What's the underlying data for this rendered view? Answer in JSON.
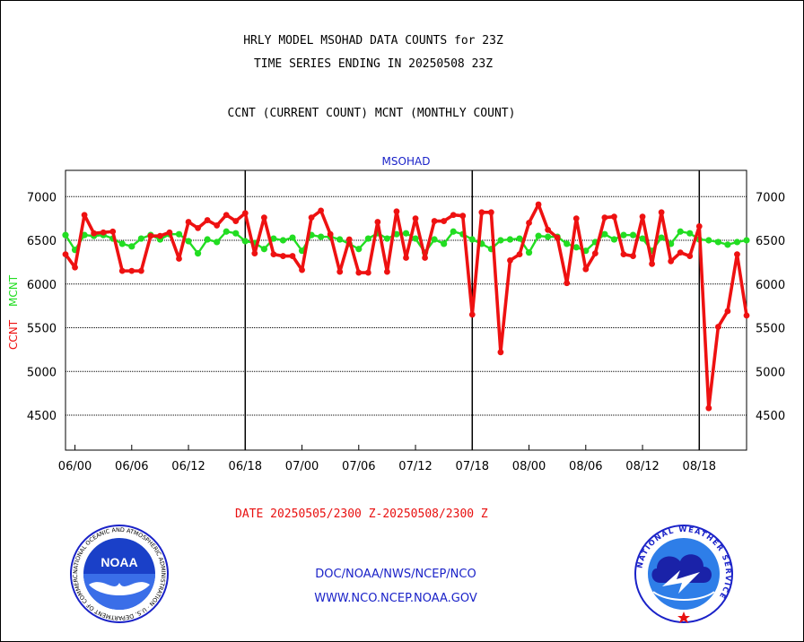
{
  "titles": {
    "line1": "HRLY MODEL MSOHAD DATA COUNTS for 23Z",
    "line2": "TIME SERIES ENDING IN 20250508 23Z",
    "line3": "CCNT (CURRENT COUNT) MCNT (MONTHLY COUNT)"
  },
  "date_range": "DATE 20250505/2300 Z-20250508/2300 Z",
  "credits": {
    "line1": "DOC/NOAA/NWS/NCEP/NCO",
    "line2": "WWW.NCO.NCEP.NOAA.GOV"
  },
  "logos": {
    "left": {
      "icon": "noaa-logo",
      "text": "NOAA",
      "ring": "NATIONAL OCEANIC AND ATMOSPHERIC ADMINISTRATION · U.S. DEPARTMENT OF COMMERCE"
    },
    "right": {
      "icon": "nws-logo",
      "ring": "NATIONAL WEATHER SERVICE"
    }
  },
  "colors": {
    "ccnt": "#ee1111",
    "mcnt": "#22dd22",
    "panel_label": "#1a22c8"
  },
  "chart_data": {
    "type": "line",
    "panel_label": "MSOHAD",
    "ylabel_ccnt": "CCNT",
    "ylabel_mcnt": "MCNT",
    "ylim": [
      4100,
      7300
    ],
    "yticks": [
      4500,
      5000,
      5500,
      6000,
      6500,
      7000
    ],
    "xticks": [
      "06/00",
      "06/06",
      "06/12",
      "06/18",
      "07/00",
      "07/06",
      "07/12",
      "07/18",
      "08/00",
      "08/06",
      "08/12",
      "08/18"
    ],
    "day_boundaries": [
      "06/18",
      "07/18",
      "08/18"
    ],
    "grid": true,
    "x_unit": "hours from 05/23Z",
    "series": [
      {
        "name": "CCNT",
        "values": [
          6340,
          6190,
          6790,
          6580,
          6590,
          6600,
          6150,
          6150,
          6150,
          6550,
          6550,
          6590,
          6290,
          6710,
          6640,
          6730,
          6670,
          6790,
          6720,
          6810,
          6350,
          6760,
          6340,
          6320,
          6320,
          6160,
          6760,
          6840,
          6570,
          6140,
          6510,
          6130,
          6130,
          6710,
          6140,
          6830,
          6300,
          6750,
          6300,
          6720,
          6720,
          6790,
          6780,
          5650,
          6820,
          6820,
          5220,
          6270,
          6340,
          6700,
          6910,
          6620,
          6530,
          6010,
          6750,
          6170,
          6350,
          6760,
          6770,
          6340,
          6320,
          6770,
          6230,
          6820,
          6260,
          6360,
          6320,
          6660,
          4580,
          5510,
          5690,
          6340,
          5640
        ]
      },
      {
        "name": "MCNT",
        "values": [
          6560,
          6390,
          6560,
          6550,
          6560,
          6520,
          6460,
          6430,
          6520,
          6560,
          6510,
          6570,
          6570,
          6490,
          6350,
          6510,
          6480,
          6600,
          6580,
          6490,
          6470,
          6400,
          6520,
          6500,
          6530,
          6380,
          6560,
          6540,
          6540,
          6510,
          6460,
          6400,
          6520,
          6580,
          6520,
          6570,
          6580,
          6520,
          6360,
          6510,
          6460,
          6600,
          6570,
          6510,
          6460,
          6400,
          6500,
          6510,
          6520,
          6360,
          6550,
          6540,
          6540,
          6460,
          6420,
          6380,
          6480,
          6570,
          6510,
          6560,
          6560,
          6520,
          6380,
          6530,
          6460,
          6600,
          6580,
          6510,
          6500,
          6480,
          6450,
          6480,
          6500
        ]
      }
    ]
  }
}
